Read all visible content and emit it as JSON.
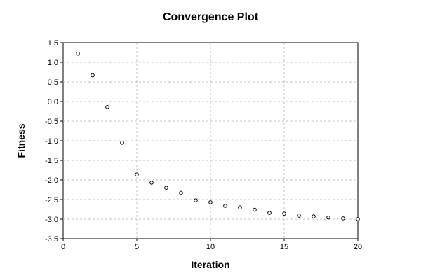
{
  "chart_data": {
    "type": "scatter",
    "title": "Convergence Plot",
    "xlabel": "Iteration",
    "ylabel": "Fitness",
    "xlim": [
      0,
      20
    ],
    "ylim": [
      -3.5,
      1.5
    ],
    "xticks": [
      0,
      5,
      10,
      15,
      20
    ],
    "xtick_labels": [
      "0",
      "5",
      "10",
      "15",
      "20"
    ],
    "yticks": [
      1.5,
      1.0,
      0.5,
      0.0,
      -0.5,
      -1.0,
      -1.5,
      -2.0,
      -2.5,
      -3.0,
      -3.5
    ],
    "ytick_labels": [
      "1.5",
      "1.0",
      "0.5",
      "0.0",
      "-0.5",
      "-1.0",
      "-1.5",
      "-2.0",
      "-2.5",
      "-3.0",
      "-3.5"
    ],
    "grid": true,
    "legend": "none",
    "marker": "open-circle",
    "series": [
      {
        "x": [
          1,
          2,
          3,
          4,
          5,
          6,
          7,
          8,
          9,
          10,
          11,
          12,
          13,
          14,
          15,
          16,
          17,
          18,
          19,
          20
        ],
        "y": [
          1.22,
          0.67,
          -0.14,
          -1.05,
          -1.86,
          -2.07,
          -2.2,
          -2.33,
          -2.52,
          -2.57,
          -2.66,
          -2.7,
          -2.76,
          -2.84,
          -2.86,
          -2.91,
          -2.93,
          -2.96,
          -2.98,
          -3.0
        ]
      }
    ]
  }
}
